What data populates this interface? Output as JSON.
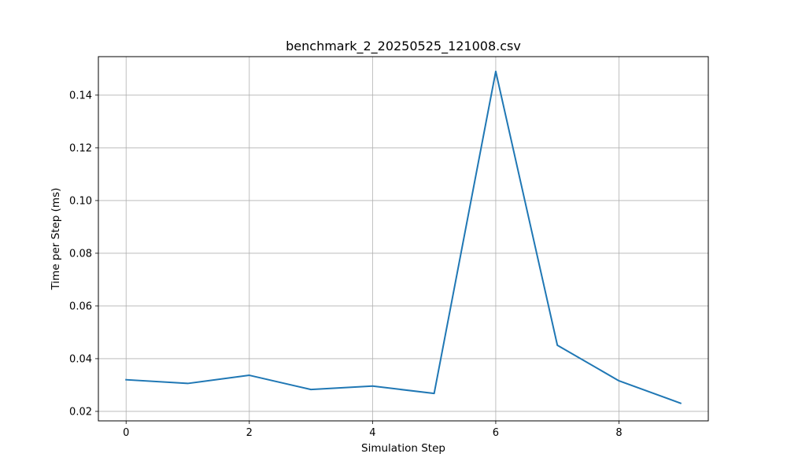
{
  "chart_data": {
    "type": "line",
    "title": "benchmark_2_20250525_121008.csv",
    "xlabel": "Simulation Step",
    "ylabel": "Time per Step (ms)",
    "xlim": [
      -0.45,
      9.45
    ],
    "ylim": [
      0.0164,
      0.1546
    ],
    "grid": true,
    "x_ticks": [
      0,
      2,
      4,
      6,
      8
    ],
    "x_tick_labels": [
      "0",
      "2",
      "4",
      "6",
      "8"
    ],
    "y_ticks": [
      0.02,
      0.04,
      0.06,
      0.08,
      0.1,
      0.12,
      0.14
    ],
    "y_tick_labels": [
      "0.02",
      "0.04",
      "0.06",
      "0.08",
      "0.10",
      "0.12",
      "0.14"
    ],
    "series": [
      {
        "color": "#1f77b4",
        "x": [
          0,
          1,
          2,
          3,
          4,
          5,
          6,
          7,
          8,
          9
        ],
        "values": [
          0.032,
          0.0306,
          0.0337,
          0.0283,
          0.0296,
          0.0268,
          0.149,
          0.0451,
          0.0316,
          0.0231
        ]
      }
    ]
  }
}
